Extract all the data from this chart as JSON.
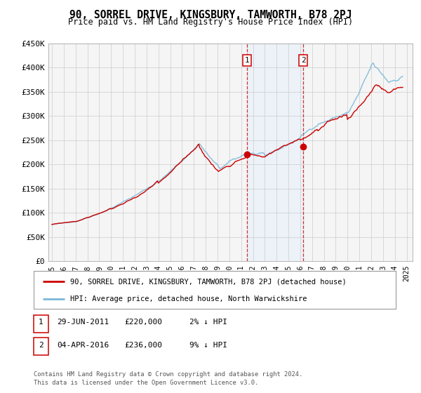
{
  "title": "90, SORREL DRIVE, KINGSBURY, TAMWORTH, B78 2PJ",
  "subtitle": "Price paid vs. HM Land Registry's House Price Index (HPI)",
  "ylim": [
    0,
    450000
  ],
  "xlim_start": 1994.7,
  "xlim_end": 2025.5,
  "yticks": [
    0,
    50000,
    100000,
    150000,
    200000,
    250000,
    300000,
    350000,
    400000,
    450000
  ],
  "ytick_labels": [
    "£0",
    "£50K",
    "£100K",
    "£150K",
    "£200K",
    "£250K",
    "£300K",
    "£350K",
    "£400K",
    "£450K"
  ],
  "xtick_years": [
    1995,
    1996,
    1997,
    1998,
    1999,
    2000,
    2001,
    2002,
    2003,
    2004,
    2005,
    2006,
    2007,
    2008,
    2009,
    2010,
    2011,
    2012,
    2013,
    2014,
    2015,
    2016,
    2017,
    2018,
    2019,
    2020,
    2021,
    2022,
    2023,
    2024,
    2025
  ],
  "sale1_date": 2011.49,
  "sale1_price": 220000,
  "sale2_date": 2016.25,
  "sale2_price": 236000,
  "hpi_color": "#7ab8d9",
  "price_color": "#cc0000",
  "shade_color": "#ddeeff",
  "legend_line1": "90, SORREL DRIVE, KINGSBURY, TAMWORTH, B78 2PJ (detached house)",
  "legend_line2": "HPI: Average price, detached house, North Warwickshire",
  "sale1_date_str": "29-JUN-2011",
  "sale1_price_str": "£220,000",
  "sale1_pct_str": "2% ↓ HPI",
  "sale2_date_str": "04-APR-2016",
  "sale2_price_str": "£236,000",
  "sale2_pct_str": "9% ↓ HPI",
  "footer1": "Contains HM Land Registry data © Crown copyright and database right 2024.",
  "footer2": "This data is licensed under the Open Government Licence v3.0.",
  "bg_color": "#f5f5f5",
  "grid_color": "#cccccc"
}
